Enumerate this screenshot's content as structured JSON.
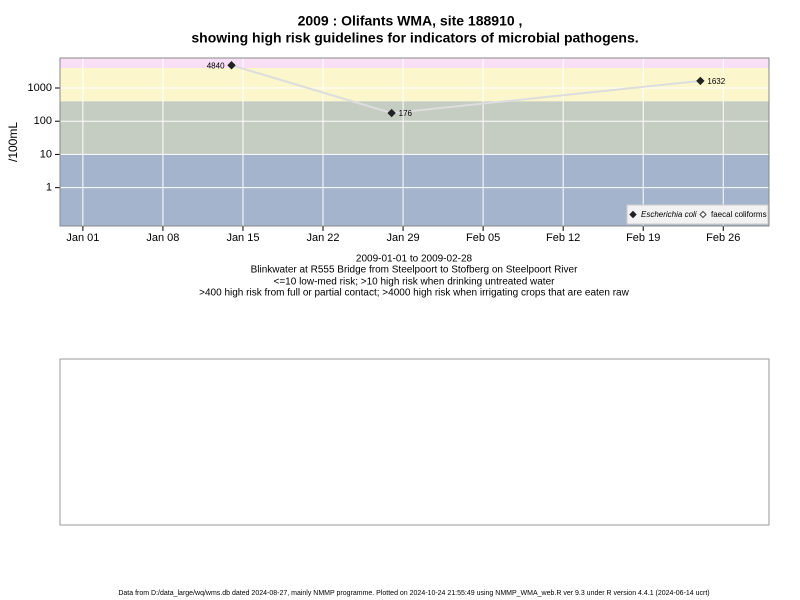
{
  "chart_data": {
    "type": "line",
    "title": "2009 : Olifants WMA, site 188910 ,",
    "subtitle": "showing high risk guidelines for indicators of microbial pathogens.",
    "y_label": "/100mL",
    "x": [
      "Jan 14",
      "Jan 28",
      "Feb 24"
    ],
    "series": [
      {
        "name": "Escherichia coli",
        "color": "#222222",
        "line_color": "#dddddd",
        "values": [
          4840,
          176,
          1632
        ]
      },
      {
        "name": "faecal coliforms",
        "color": "#444444",
        "values": [
          null,
          null,
          null
        ]
      }
    ],
    "xlim": [
      "Dec 30",
      "Mar 02"
    ],
    "xticks": [
      "Jan 01",
      "Jan 08",
      "Jan 15",
      "Jan 22",
      "Jan 29",
      "Feb 05",
      "Feb 12",
      "Feb 19",
      "Feb 26"
    ],
    "ylim": [
      0.07,
      8000
    ],
    "yticks": [
      1,
      10,
      100,
      1000
    ],
    "log_y": true,
    "grid": true,
    "thresholds": [
      10,
      400,
      4000
    ],
    "band_colors": [
      "#a4b4cc",
      "#c5ccc1",
      "#fbf6cc",
      "#f8dff6"
    ],
    "legend": "bottom-right",
    "notes": [
      "2009-01-01 to 2009-02-28",
      "Blinkwater at R555 Bridge from Steelpoort to Stofberg on Steelpoort River",
      "<=10 low-med risk; >10 high risk when drinking untreated water",
      ">400 high risk from full or partial contact; >4000 high risk when irrigating crops that are eaten raw"
    ],
    "footer": "Data from D:/data_large/wq/wms.db dated 2024-08-27, mainly NMMP programme. Plotted on 2024-10-24 21:55:49 using NMMP_WMA_web.R ver 9.3 under R version 4.4.1 (2024-06-14 ucrt)"
  }
}
